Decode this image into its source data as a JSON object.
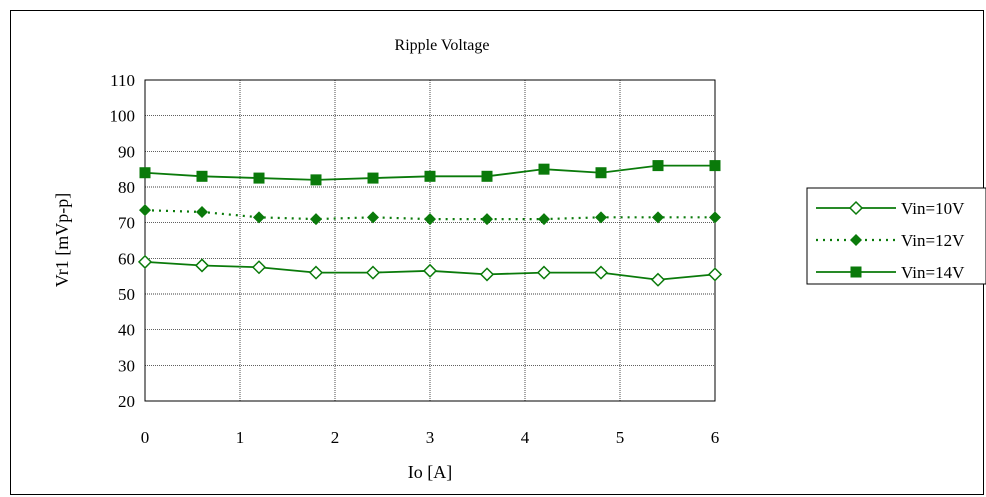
{
  "chart_data": {
    "type": "line",
    "title": "Ripple Voltage",
    "xlabel": "Io [A]",
    "ylabel": "Vr1 [mVp-p]",
    "xlim": [
      0,
      6
    ],
    "ylim": [
      20,
      110
    ],
    "xticks": [
      "0",
      "1",
      "2",
      "3",
      "4",
      "5",
      "6"
    ],
    "yticks": [
      "20",
      "30",
      "40",
      "50",
      "60",
      "70",
      "80",
      "90",
      "100",
      "110"
    ],
    "grid": true,
    "legend_position": "right",
    "x": [
      0,
      0.6,
      1.2,
      1.8,
      2.4,
      3.0,
      3.6,
      4.2,
      4.8,
      5.4,
      6.0
    ],
    "series": [
      {
        "name": "Vin=10V",
        "values": [
          59,
          58,
          57.5,
          56,
          56,
          56.5,
          55.5,
          56,
          56,
          54,
          55.5
        ],
        "marker": "diamond-open",
        "line": "solid",
        "color": "#0a7a0a"
      },
      {
        "name": "Vin=12V",
        "values": [
          73.5,
          73,
          71.5,
          71,
          71.5,
          71,
          71,
          71,
          71.5,
          71.5,
          71.5
        ],
        "marker": "diamond-filled",
        "line": "dotted",
        "color": "#0a7a0a"
      },
      {
        "name": "Vin=14V",
        "values": [
          84,
          83,
          82.5,
          82,
          82.5,
          83,
          83,
          85,
          84,
          86,
          86
        ],
        "marker": "square-filled",
        "line": "solid",
        "color": "#0a7a0a"
      }
    ]
  }
}
